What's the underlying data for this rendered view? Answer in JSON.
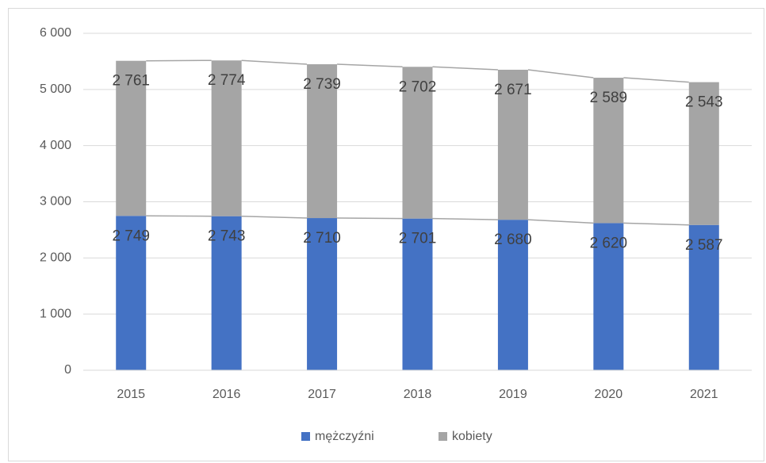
{
  "chart_data": {
    "type": "stacked_bar",
    "categories": [
      "2015",
      "2016",
      "2017",
      "2018",
      "2019",
      "2020",
      "2021"
    ],
    "series": [
      {
        "name": "mężczyźni",
        "color": "#4472c4",
        "values": [
          2749,
          2743,
          2710,
          2701,
          2680,
          2620,
          2587
        ],
        "value_labels": [
          "2 749",
          "2 743",
          "2 710",
          "2 701",
          "2 680",
          "2 620",
          "2 587"
        ]
      },
      {
        "name": "kobiety",
        "color": "#a5a5a5",
        "values": [
          2761,
          2774,
          2739,
          2702,
          2671,
          2589,
          2543
        ],
        "value_labels": [
          "2 761",
          "2 774",
          "2 739",
          "2 702",
          "2 671",
          "2 589",
          "2 543"
        ]
      }
    ],
    "ylim": [
      0,
      6000
    ],
    "yticks": [
      0,
      {
        "value": 1000,
        "label": "1 000"
      },
      {
        "value": 2000,
        "label": "2 000"
      },
      {
        "value": 3000,
        "label": "3 000"
      },
      {
        "value": 4000,
        "label": "4 000"
      },
      {
        "value": 5000,
        "label": "5 000"
      },
      {
        "value": 6000,
        "label": "6 000"
      }
    ],
    "grid": true,
    "legend": "bottom"
  }
}
